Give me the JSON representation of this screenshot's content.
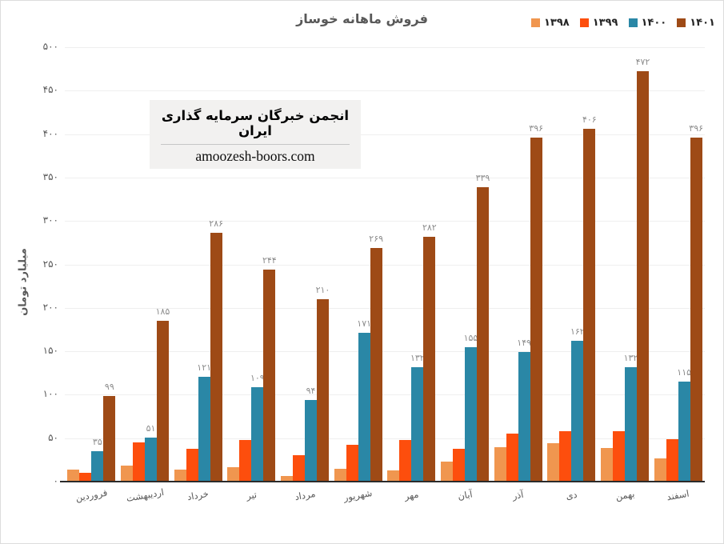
{
  "header": {
    "title": "فروش ماهانه خوساز"
  },
  "legend": [
    {
      "key": "1398",
      "label": "۱۳۹۸",
      "color": "#F0964F"
    },
    {
      "key": "1399",
      "label": "۱۳۹۹",
      "color": "#FD4E0D"
    },
    {
      "key": "1400",
      "label": "۱۴۰۰",
      "color": "#2A87A6"
    },
    {
      "key": "1401",
      "label": "۱۴۰۱",
      "color": "#9E4A16"
    }
  ],
  "watermark": {
    "line1": "انجمن خبرگان سرمایه گذاری ایران",
    "line2": "amoozesh-boors.com"
  },
  "chart_data": {
    "type": "bar",
    "title": "فروش ماهانه خوساز",
    "xlabel": "",
    "ylabel": "میلیارد تومان",
    "ylim": [
      0,
      500
    ],
    "ytick_step": 50,
    "yticks_fa": [
      "۰",
      "۵۰",
      "۱۰۰",
      "۱۵۰",
      "۲۰۰",
      "۲۵۰",
      "۳۰۰",
      "۳۵۰",
      "۴۰۰",
      "۴۵۰",
      "۵۰۰"
    ],
    "grid": true,
    "legend_position": "top-right",
    "categories": [
      "فروردین",
      "اردیبهشت",
      "خرداد",
      "تیر",
      "مرداد",
      "شهریور",
      "مهر",
      "آبان",
      "آذر",
      "دی",
      "بهمن",
      "اسفند"
    ],
    "series": [
      {
        "key": "1398",
        "name": "۱۳۹۸",
        "color": "#F0964F",
        "values": [
          14,
          18,
          14,
          17,
          6,
          15,
          13,
          23,
          40,
          44,
          39,
          27
        ],
        "labels": null
      },
      {
        "key": "1399",
        "name": "۱۳۹۹",
        "color": "#FD4E0D",
        "values": [
          10,
          45,
          38,
          48,
          30,
          42,
          48,
          38,
          55,
          58,
          58,
          49
        ],
        "labels": null
      },
      {
        "key": "1400",
        "name": "۱۴۰۰",
        "color": "#2A87A6",
        "values": [
          35,
          51,
          121,
          109,
          94,
          171,
          132,
          155,
          149,
          162,
          132,
          115
        ],
        "labels": [
          "۳۵",
          "۵۱",
          "۱۲۱",
          "۱۰۹",
          "۹۴",
          "۱۷۱",
          "۱۳۲",
          "۱۵۵",
          "۱۴۹",
          "۱۶۲",
          "۱۳۲",
          "۱۱۵"
        ]
      },
      {
        "key": "1401",
        "name": "۱۴۰۱",
        "color": "#9E4A16",
        "values": [
          99,
          185,
          286,
          244,
          210,
          269,
          282,
          339,
          396,
          406,
          472,
          396
        ],
        "labels": [
          "۹۹",
          "۱۸۵",
          "۲۸۶",
          "۲۴۴",
          "۲۱۰",
          "۲۶۹",
          "۲۸۲",
          "۳۳۹",
          "۳۹۶",
          "۴۰۶",
          "۴۷۲",
          "۳۹۶"
        ]
      }
    ]
  }
}
